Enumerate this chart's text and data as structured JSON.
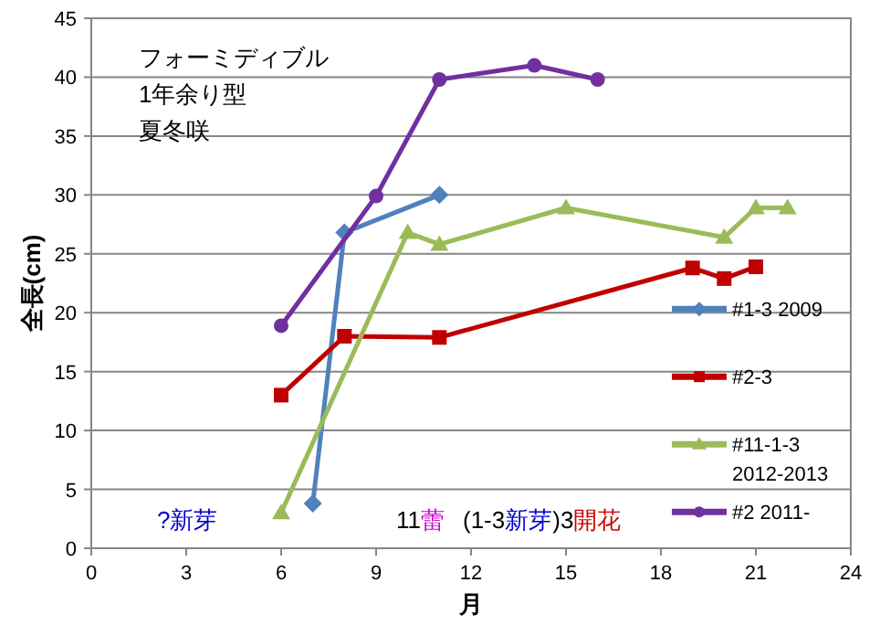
{
  "chart_data": {
    "type": "line",
    "xlabel": "月",
    "ylabel": "全長(cm)",
    "xlim": [
      0,
      24
    ],
    "xticks": [
      0,
      3,
      6,
      9,
      12,
      15,
      18,
      21,
      24
    ],
    "ylim": [
      0,
      45
    ],
    "yticks": [
      0,
      5,
      10,
      15,
      20,
      25,
      30,
      35,
      40,
      45
    ],
    "grid": "y",
    "legend": "right",
    "series": [
      {
        "name": "#1-3 2009",
        "color": "#4f81bd",
        "marker": "diamond",
        "x": [
          7,
          8,
          11
        ],
        "values": [
          3.8,
          26.8,
          30
        ]
      },
      {
        "name": "#2-3",
        "color": "#c00000",
        "marker": "square",
        "x": [
          6,
          8,
          11,
          19,
          20,
          21
        ],
        "values": [
          13,
          18,
          17.9,
          23.8,
          22.9,
          23.9
        ]
      },
      {
        "name": "#11-1-3 2012-2013",
        "color": "#9bbb59",
        "marker": "triangle",
        "x": [
          6,
          10,
          11,
          15,
          20,
          21,
          22
        ],
        "values": [
          3,
          26.8,
          25.8,
          28.9,
          26.4,
          28.9,
          28.9
        ]
      },
      {
        "name": "#2 2011-",
        "color": "#7030a0",
        "marker": "circle",
        "x": [
          6,
          9,
          11,
          14,
          16
        ],
        "values": [
          18.9,
          29.9,
          39.8,
          41,
          39.8
        ]
      }
    ],
    "annotations": [
      "フォーミディブル",
      "1年余り型",
      "夏冬咲",
      "?新芽",
      "11",
      "蕾",
      "(1-3",
      "新芽",
      ")3",
      "開花"
    ]
  }
}
